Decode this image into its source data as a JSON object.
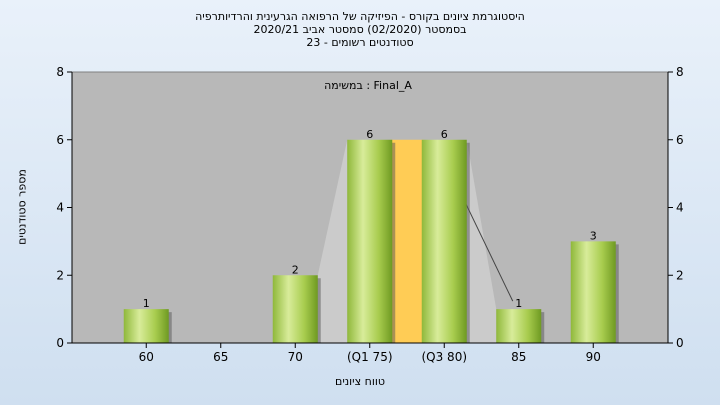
{
  "header": {
    "line1": "היסטוגרמת ציונים בקורס - הפיזיקה של הרפואה הגרעינית והרדיותרפיה",
    "line2": "בסמסטר (02/2020) סמסטר אביב 2020/21",
    "line3": "סטודנטים רשומים - 23"
  },
  "annotation": "במשימה : Final_A",
  "chart_data": {
    "type": "bar",
    "title": "היסטוגרמת ציונים בקורס - הפיזיקה של הרפואה הגרעינית והרדיותרפיה",
    "xlabel": "טווח ציונים",
    "ylabel": "מספר סטודנטים",
    "categories": [
      "60",
      "65",
      "70",
      "(Q1 75)",
      "(Q3 80)",
      "85",
      "90"
    ],
    "values": [
      1,
      0,
      2,
      6,
      6,
      1,
      3
    ],
    "ylim": [
      0,
      8
    ],
    "yticks": [
      0,
      2,
      4,
      6,
      8
    ],
    "grid": false,
    "quartile_band": [
      "(Q1 75)",
      "(Q3 80)"
    ],
    "colors": {
      "bar_light": "#d8ec9a",
      "bar_mid": "#a8cc4e",
      "bar_dark": "#6f9a22",
      "quartile_band": "#ffcc55",
      "plot_bg": "#b8b8b8",
      "trend_fill": "#cfcfcf"
    }
  }
}
